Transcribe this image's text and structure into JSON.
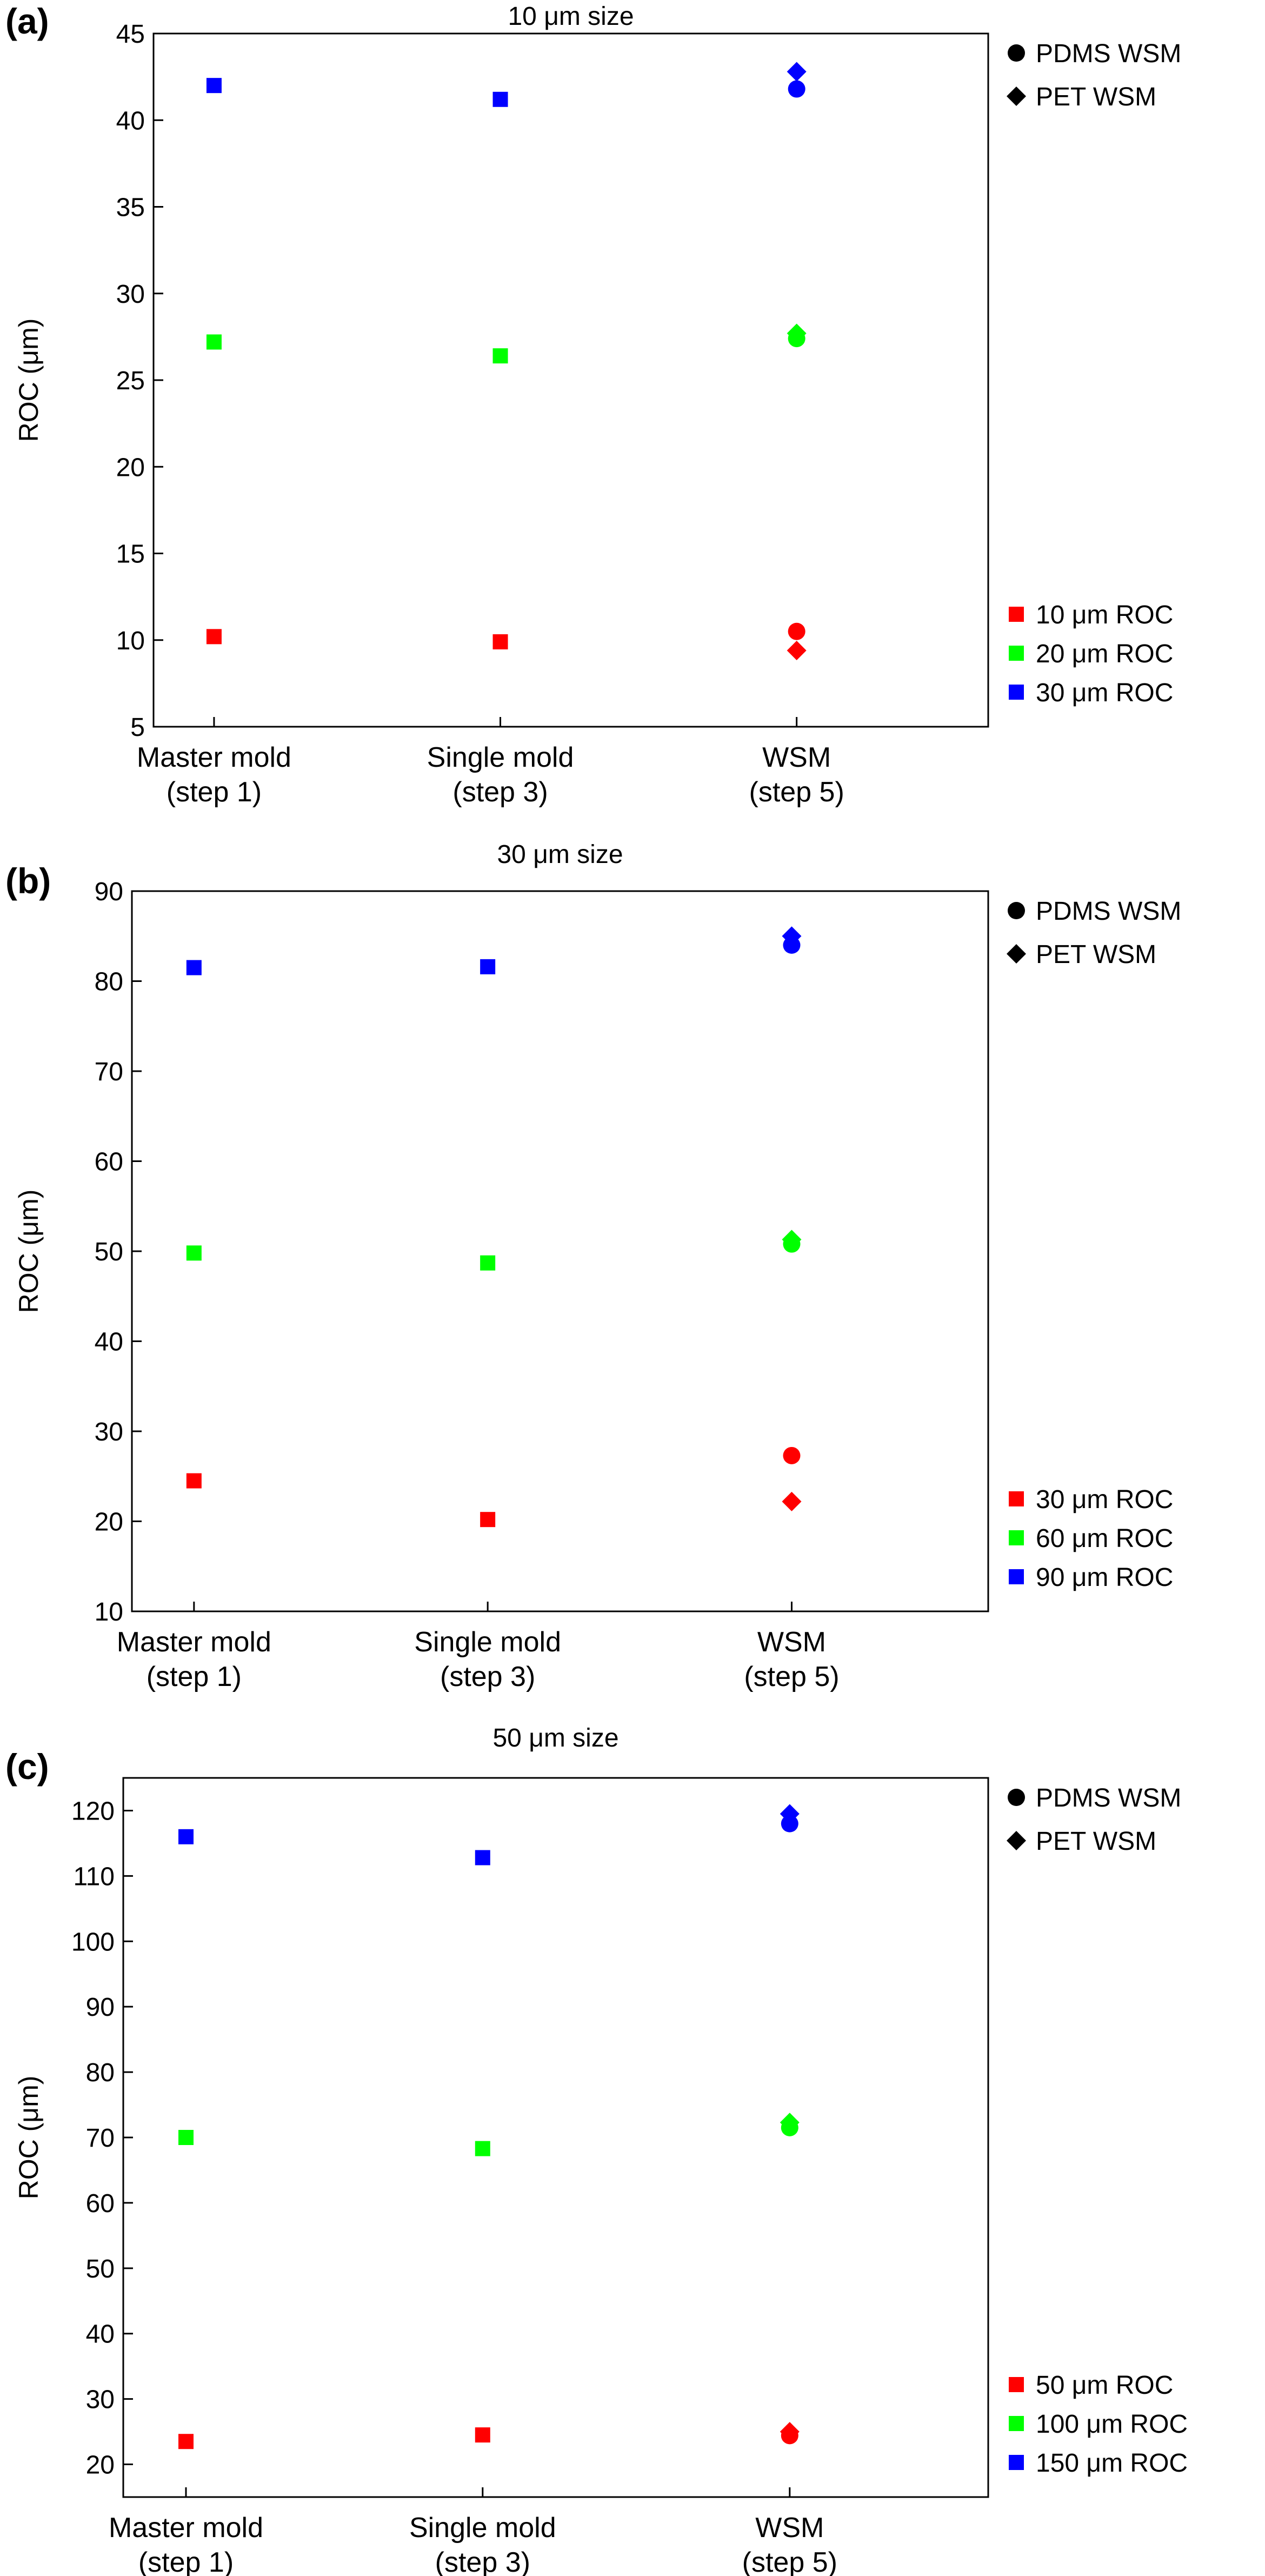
{
  "chart_data": [
    {
      "type": "scatter",
      "panel_label": "(a)",
      "title": "10 μm size",
      "xlabel": "",
      "ylabel": "ROC (μm)",
      "categories": [
        [
          "Master mold",
          "(step 1)"
        ],
        [
          "Single mold",
          "(step 3)"
        ],
        [
          "WSM",
          "(step 5)"
        ]
      ],
      "ylim": [
        5,
        45
      ],
      "yticks": [
        5,
        10,
        15,
        20,
        25,
        30,
        35,
        40,
        45
      ],
      "grid": false,
      "marker_legend": {
        "placement": "top-right",
        "entries": [
          {
            "marker": "circle",
            "label": "PDMS WSM"
          },
          {
            "marker": "diamond",
            "label": "PET WSM"
          }
        ]
      },
      "color_legend": {
        "placement": "bottom-right",
        "entries": [
          {
            "color": "#ff0000",
            "label": "10 μm ROC"
          },
          {
            "color": "#00ff00",
            "label": "20 μm ROC"
          },
          {
            "color": "#0000ff",
            "label": "30 μm ROC"
          }
        ]
      },
      "series": [
        {
          "color": "#ff0000",
          "points": [
            {
              "x": 0,
              "y": 10.2,
              "marker": "square"
            },
            {
              "x": 1,
              "y": 9.9,
              "marker": "square"
            },
            {
              "x": 2,
              "y": 10.5,
              "marker": "circle"
            },
            {
              "x": 2,
              "y": 9.4,
              "marker": "diamond"
            }
          ]
        },
        {
          "color": "#00ff00",
          "points": [
            {
              "x": 0,
              "y": 27.2,
              "marker": "square"
            },
            {
              "x": 1,
              "y": 26.4,
              "marker": "square"
            },
            {
              "x": 2,
              "y": 27.4,
              "marker": "circle"
            },
            {
              "x": 2,
              "y": 27.7,
              "marker": "diamond"
            }
          ]
        },
        {
          "color": "#0000ff",
          "points": [
            {
              "x": 0,
              "y": 42.0,
              "marker": "square"
            },
            {
              "x": 1,
              "y": 41.2,
              "marker": "square"
            },
            {
              "x": 2,
              "y": 41.8,
              "marker": "circle"
            },
            {
              "x": 2,
              "y": 42.8,
              "marker": "diamond"
            }
          ]
        }
      ]
    },
    {
      "type": "scatter",
      "panel_label": "(b)",
      "title": "30 μm size",
      "xlabel": "",
      "ylabel": "ROC (μm)",
      "categories": [
        [
          "Master mold",
          "(step 1)"
        ],
        [
          "Single mold",
          "(step 3)"
        ],
        [
          "WSM",
          "(step 5)"
        ]
      ],
      "ylim": [
        10,
        90
      ],
      "yticks": [
        10,
        20,
        30,
        40,
        50,
        60,
        70,
        80,
        90
      ],
      "grid": false,
      "marker_legend": {
        "placement": "top-right",
        "entries": [
          {
            "marker": "circle",
            "label": "PDMS WSM"
          },
          {
            "marker": "diamond",
            "label": "PET WSM"
          }
        ]
      },
      "color_legend": {
        "placement": "bottom-right",
        "entries": [
          {
            "color": "#ff0000",
            "label": "30 μm ROC"
          },
          {
            "color": "#00ff00",
            "label": "60 μm ROC"
          },
          {
            "color": "#0000ff",
            "label": "90 μm ROC"
          }
        ]
      },
      "series": [
        {
          "color": "#ff0000",
          "points": [
            {
              "x": 0,
              "y": 24.5,
              "marker": "square"
            },
            {
              "x": 1,
              "y": 20.2,
              "marker": "square"
            },
            {
              "x": 2,
              "y": 27.3,
              "marker": "circle"
            },
            {
              "x": 2,
              "y": 22.2,
              "marker": "diamond"
            }
          ]
        },
        {
          "color": "#00ff00",
          "points": [
            {
              "x": 0,
              "y": 49.8,
              "marker": "square"
            },
            {
              "x": 1,
              "y": 48.7,
              "marker": "square"
            },
            {
              "x": 2,
              "y": 50.8,
              "marker": "circle"
            },
            {
              "x": 2,
              "y": 51.3,
              "marker": "diamond"
            }
          ]
        },
        {
          "color": "#0000ff",
          "points": [
            {
              "x": 0,
              "y": 81.5,
              "marker": "square"
            },
            {
              "x": 1,
              "y": 81.6,
              "marker": "square"
            },
            {
              "x": 2,
              "y": 84.0,
              "marker": "circle"
            },
            {
              "x": 2,
              "y": 85.0,
              "marker": "diamond"
            }
          ]
        }
      ]
    },
    {
      "type": "scatter",
      "panel_label": "(c)",
      "title": "50 μm size",
      "xlabel": "",
      "ylabel": "ROC (μm)",
      "categories": [
        [
          "Master mold",
          "(step 1)"
        ],
        [
          "Single mold",
          "(step 3)"
        ],
        [
          "WSM",
          "(step 5)"
        ]
      ],
      "ylim": [
        15,
        125
      ],
      "yticks": [
        20,
        30,
        40,
        50,
        60,
        70,
        80,
        90,
        100,
        110,
        120
      ],
      "grid": false,
      "marker_legend": {
        "placement": "top-right",
        "entries": [
          {
            "marker": "circle",
            "label": "PDMS WSM"
          },
          {
            "marker": "diamond",
            "label": "PET WSM"
          }
        ]
      },
      "color_legend": {
        "placement": "bottom-right",
        "entries": [
          {
            "color": "#ff0000",
            "label": "50 μm ROC"
          },
          {
            "color": "#00ff00",
            "label": "100 μm ROC"
          },
          {
            "color": "#0000ff",
            "label": "150 μm ROC"
          }
        ]
      },
      "series": [
        {
          "color": "#ff0000",
          "points": [
            {
              "x": 0,
              "y": 23.5,
              "marker": "square"
            },
            {
              "x": 1,
              "y": 24.5,
              "marker": "square"
            },
            {
              "x": 2,
              "y": 24.4,
              "marker": "circle"
            },
            {
              "x": 2,
              "y": 25.0,
              "marker": "diamond"
            }
          ]
        },
        {
          "color": "#00ff00",
          "points": [
            {
              "x": 0,
              "y": 70.0,
              "marker": "square"
            },
            {
              "x": 1,
              "y": 68.3,
              "marker": "square"
            },
            {
              "x": 2,
              "y": 71.5,
              "marker": "circle"
            },
            {
              "x": 2,
              "y": 72.3,
              "marker": "diamond"
            }
          ]
        },
        {
          "color": "#0000ff",
          "points": [
            {
              "x": 0,
              "y": 116.0,
              "marker": "square"
            },
            {
              "x": 1,
              "y": 112.8,
              "marker": "square"
            },
            {
              "x": 2,
              "y": 118.0,
              "marker": "circle"
            },
            {
              "x": 2,
              "y": 119.5,
              "marker": "diamond"
            }
          ]
        }
      ]
    }
  ]
}
